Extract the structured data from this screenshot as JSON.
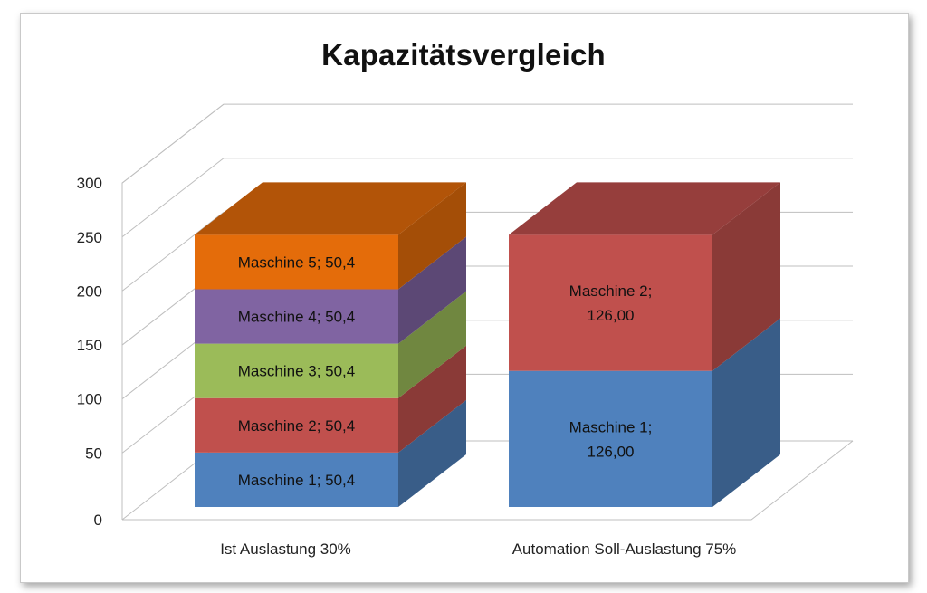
{
  "chart_data": {
    "type": "bar",
    "stacked": true,
    "three_d": true,
    "title": "Kapazitätsvergleich",
    "xlabel": "",
    "ylabel": "",
    "ylim": [
      0,
      300
    ],
    "yticks": [
      0,
      50,
      100,
      150,
      200,
      250,
      300
    ],
    "grid": true,
    "categories": [
      "Ist Auslastung 30%",
      "Automation Soll-Auslastung 75%"
    ],
    "bars": [
      {
        "category": "Ist Auslastung 30%",
        "segments": [
          {
            "name": "Maschine 1",
            "value": 50.4,
            "label": "Maschine 1; 50,4",
            "color": "#4f81bd"
          },
          {
            "name": "Maschine 2",
            "value": 50.4,
            "label": "Maschine 2; 50,4",
            "color": "#c0504d"
          },
          {
            "name": "Maschine 3",
            "value": 50.4,
            "label": "Maschine 3; 50,4",
            "color": "#9bbb59"
          },
          {
            "name": "Maschine 4",
            "value": 50.4,
            "label": "Maschine 4; 50,4",
            "color": "#8064a2"
          },
          {
            "name": "Maschine 5",
            "value": 50.4,
            "label": "Maschine 5; 50,4",
            "color": "#e46c0a"
          }
        ]
      },
      {
        "category": "Automation Soll-Auslastung 75%",
        "segments": [
          {
            "name": "Maschine 1",
            "value": 126.0,
            "label": "Maschine 1;\n126,00",
            "color": "#4f81bd"
          },
          {
            "name": "Maschine 2",
            "value": 126.0,
            "label": "Maschine 2;\n126,00",
            "color": "#c0504d"
          }
        ]
      }
    ]
  }
}
